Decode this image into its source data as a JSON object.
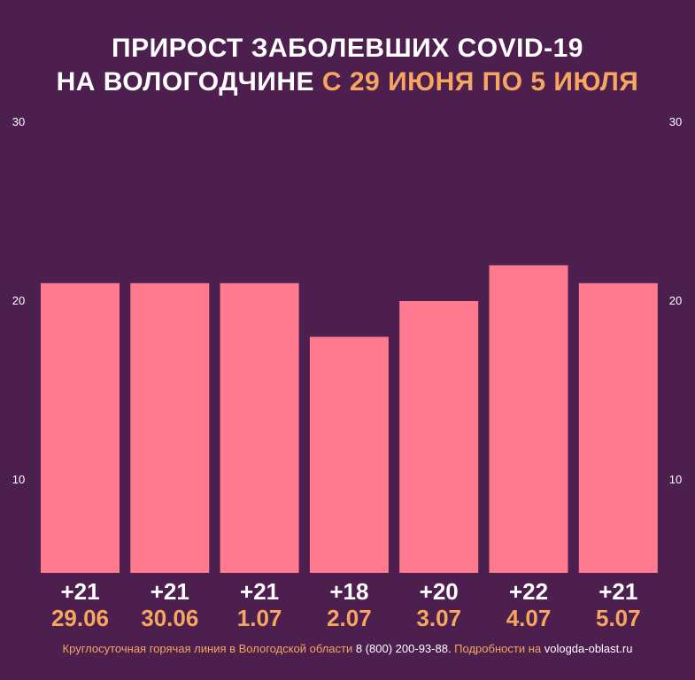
{
  "title": {
    "line1": "ПРИРОСТ ЗАБОЛЕВШИХ COVID-19",
    "line2_white": "НА ВОЛОГОДЧИНЕ ",
    "line2_accent": "С 29 ИЮНЯ ПО 5 ИЮЛЯ"
  },
  "footer": {
    "text1": "Круглосуточная горячая линия в Вологодской области ",
    "phone": "8 (800) 200-93-88.",
    "text2": " Подробности на ",
    "site": "vologda-oblast.ru"
  },
  "colors": {
    "background": "#4d1f4f",
    "bar": "#ff7a8f",
    "accent": "#f6a65e",
    "text": "#ffffff"
  },
  "chart_data": {
    "type": "bar",
    "categories": [
      "29.06",
      "30.06",
      "1.07",
      "2.07",
      "3.07",
      "4.07",
      "5.07"
    ],
    "values": [
      21,
      21,
      21,
      18,
      20,
      22,
      21
    ],
    "value_labels": [
      "+21",
      "+21",
      "+21",
      "+18",
      "+20",
      "+22",
      "+21"
    ],
    "yticks": [
      "10",
      "20",
      "30"
    ],
    "ytick_values": [
      10,
      20,
      30
    ],
    "y_axis_sides": [
      "left",
      "right"
    ],
    "grid": false,
    "legend": "none"
  }
}
